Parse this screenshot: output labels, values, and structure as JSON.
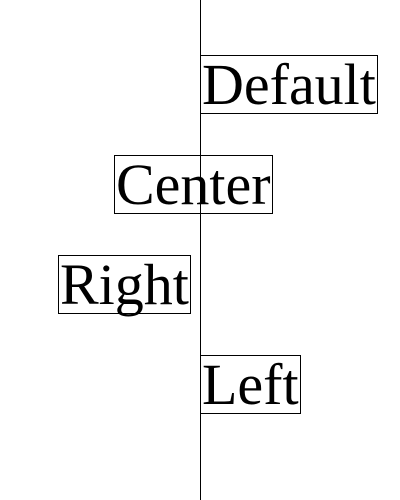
{
  "reference_line": {
    "color": "#000000"
  },
  "labels": {
    "default": "Default",
    "center": "Center",
    "right": "Right",
    "left": "Left"
  }
}
